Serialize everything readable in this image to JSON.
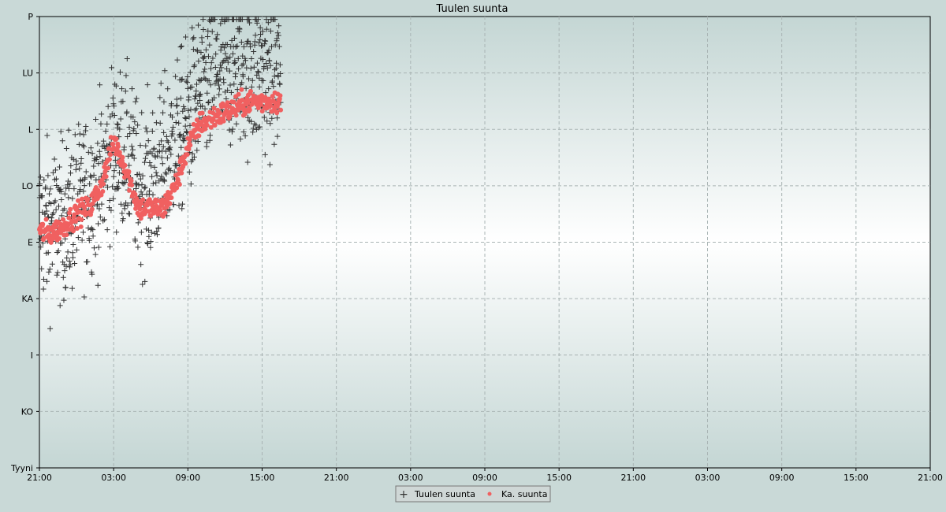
{
  "chart_data": {
    "type": "scatter",
    "title": "Tuulen suunta",
    "xlabel": "",
    "ylabel": "",
    "x_tick_labels": [
      "21:00",
      "03:00",
      "09:00",
      "15:00",
      "21:00",
      "03:00",
      "09:00",
      "15:00",
      "21:00",
      "03:00",
      "09:00",
      "15:00",
      "21:00"
    ],
    "y_tick_labels": [
      "Tyyni",
      "KO",
      "I",
      "KA",
      "E",
      "LO",
      "L",
      "LU",
      "P"
    ],
    "xlim_hours": [
      0,
      72
    ],
    "ylim_index": [
      0,
      8
    ],
    "grid": true,
    "legend_position": "bottom-center",
    "colors": {
      "raw": "#333333",
      "avg": "#f06060",
      "background": "#c9d9d7"
    },
    "series": [
      {
        "name": "Tuulen suunta",
        "marker": "plus",
        "segments": [
          {
            "x_start": 0.0,
            "x_end": 19.5,
            "points": [
              [
                0,
                4.3
              ],
              [
                1,
                4.3
              ],
              [
                2,
                4.4
              ],
              [
                3,
                4.6
              ],
              [
                4,
                4.9
              ],
              [
                5,
                5.1
              ],
              [
                6,
                5.7
              ],
              [
                7,
                5.6
              ],
              [
                8,
                5.0
              ],
              [
                9,
                5.0
              ],
              [
                10,
                5.4
              ],
              [
                11,
                5.8
              ],
              [
                12,
                6.2
              ],
              [
                13,
                6.6
              ],
              [
                14,
                6.9
              ],
              [
                15,
                7.0
              ],
              [
                16,
                7.2
              ],
              [
                17,
                7.0
              ],
              [
                18,
                7.0
              ],
              [
                19.5,
                7.0
              ]
            ],
            "spread": 1.0,
            "count": 900
          }
        ]
      },
      {
        "name": "Ka. suunta",
        "marker": "dot",
        "segments": [
          {
            "x_start": 0.0,
            "x_end": 19.5,
            "points": [
              [
                0,
                4.2
              ],
              [
                1,
                4.15
              ],
              [
                2,
                4.3
              ],
              [
                3,
                4.5
              ],
              [
                4,
                4.6
              ],
              [
                5,
                5.0
              ],
              [
                6,
                5.8
              ],
              [
                7,
                5.3
              ],
              [
                8,
                4.6
              ],
              [
                9,
                4.6
              ],
              [
                10,
                4.6
              ],
              [
                11,
                5.0
              ],
              [
                12,
                5.7
              ],
              [
                13,
                6.1
              ],
              [
                14,
                6.2
              ],
              [
                15,
                6.3
              ],
              [
                16,
                6.4
              ],
              [
                17,
                6.5
              ],
              [
                18,
                6.5
              ],
              [
                19.5,
                6.5
              ]
            ],
            "spread": 0.15,
            "count": 500
          }
        ]
      }
    ]
  }
}
